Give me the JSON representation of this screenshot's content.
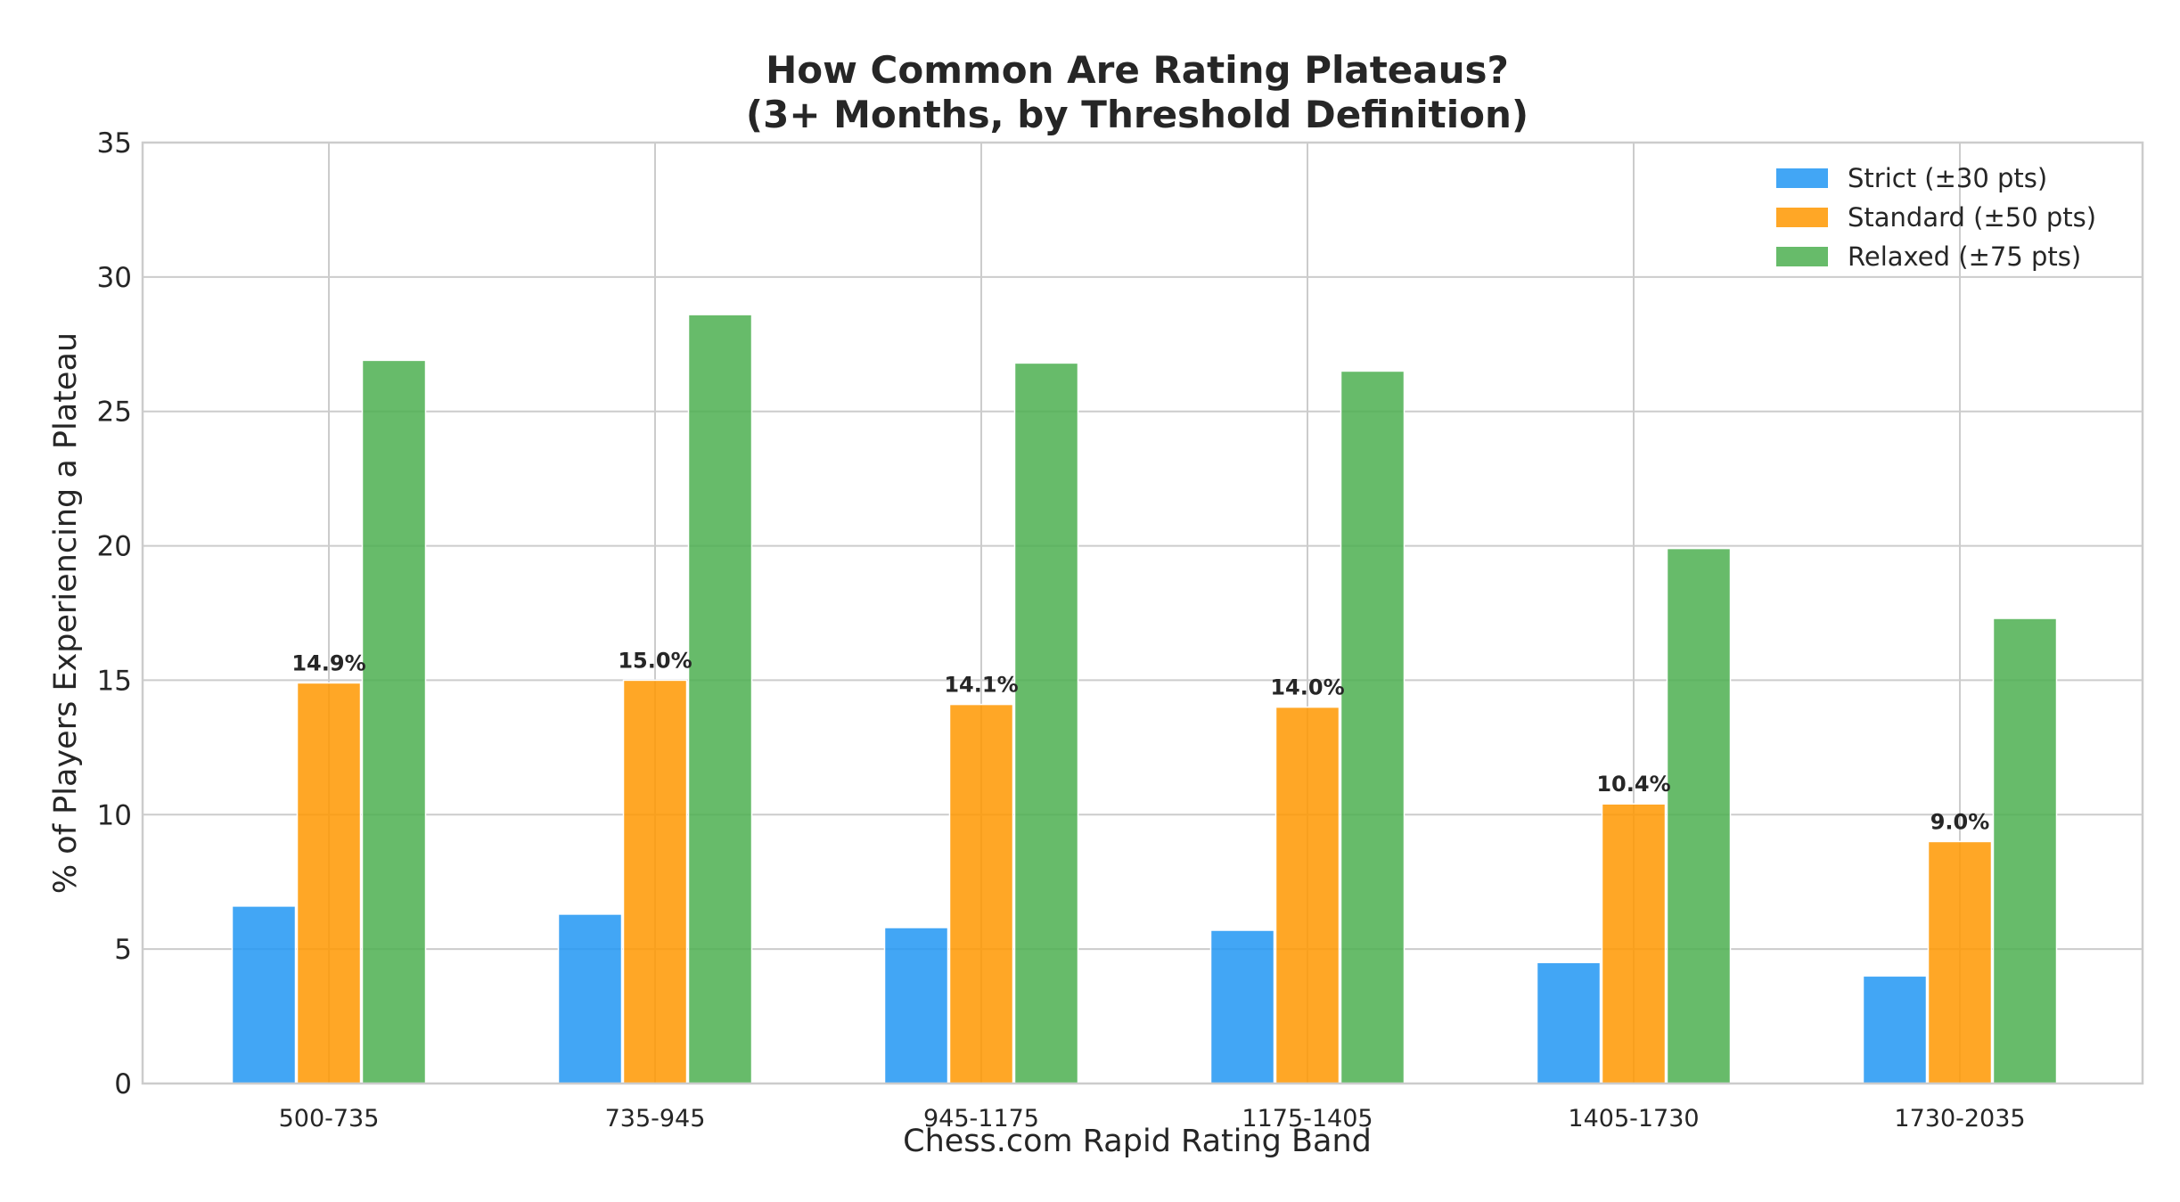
{
  "chart_data": {
    "type": "bar",
    "title": "How Common Are Rating Plateaus?",
    "subtitle": "(3+ Months, by Threshold Definition)",
    "xlabel": "Chess.com Rapid Rating Band",
    "ylabel": "% of Players Experiencing a Plateau",
    "ylim": [
      0,
      35
    ],
    "yticks": [
      "0",
      "5",
      "10",
      "15",
      "20",
      "25",
      "30",
      "35"
    ],
    "categories": [
      "500-735",
      "735-945",
      "945-1175",
      "1175-1405",
      "1405-1730",
      "1730-2035"
    ],
    "series": [
      {
        "name": "Strict (±30 pts)",
        "color": "#2196F3",
        "values": [
          6.6,
          6.3,
          5.8,
          5.7,
          4.5,
          4.0
        ]
      },
      {
        "name": "Standard (±50 pts)",
        "color": "#FF9800",
        "values": [
          14.9,
          15.0,
          14.1,
          14.0,
          10.4,
          9.0
        ],
        "labels": [
          "14.9%",
          "15.0%",
          "14.1%",
          "14.0%",
          "10.4%",
          "9.0%"
        ]
      },
      {
        "name": "Relaxed (±75 pts)",
        "color": "#4CAF50",
        "values": [
          26.9,
          28.6,
          26.8,
          26.5,
          19.9,
          17.3
        ]
      }
    ],
    "grid": true,
    "legend_position": "top-right"
  }
}
